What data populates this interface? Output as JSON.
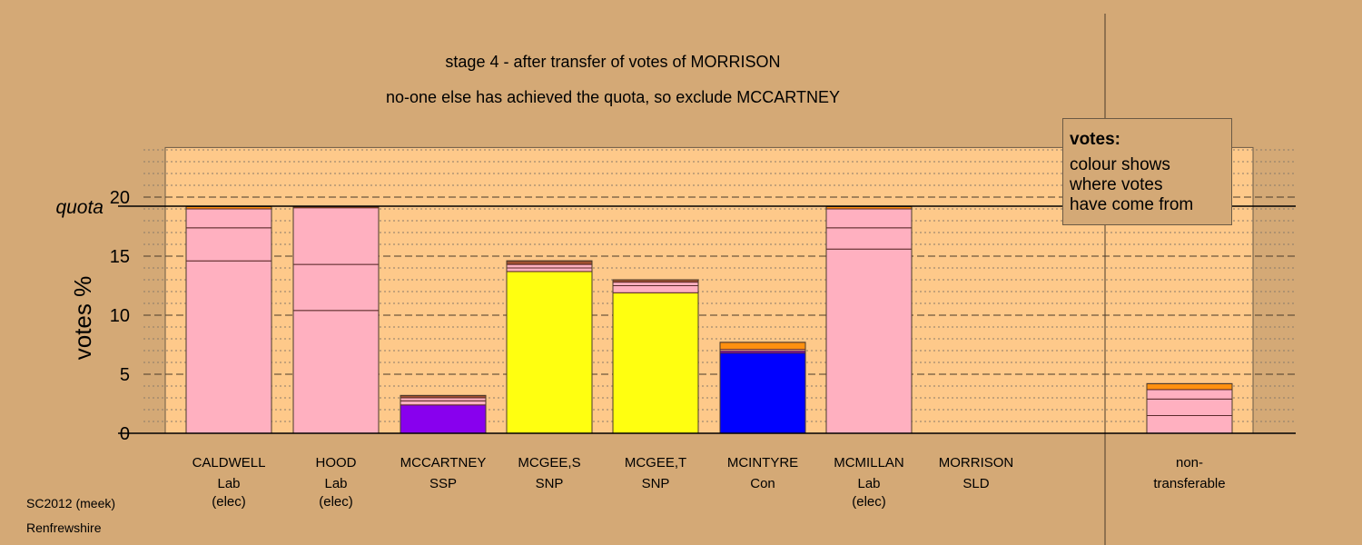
{
  "chart_data": {
    "type": "bar",
    "stacked": true,
    "title": "stage 4 - after transfer of votes of MORRISON",
    "subtitle": "no-one else has achieved the quota, so exclude MCCARTNEY",
    "ylabel": "votes %",
    "ylim": [
      0,
      24.2
    ],
    "yticks": [
      "0",
      "5",
      "10",
      "15",
      "20"
    ],
    "quota": 19.23,
    "quota_label": "quota",
    "grid": true,
    "categories": [
      {
        "name": "CALDWELL",
        "party": "Lab",
        "note": "(elec)",
        "segments": [
          [
            14.6,
            "#ffb0c0"
          ],
          [
            2.8,
            "#ffb0c0"
          ],
          [
            1.6,
            "#ffb0c0"
          ],
          [
            0.2,
            "#ff9010"
          ]
        ]
      },
      {
        "name": "HOOD",
        "party": "Lab",
        "note": "(elec)",
        "segments": [
          [
            10.4,
            "#ffb0c0"
          ],
          [
            3.9,
            "#ffb0c0"
          ],
          [
            4.8,
            "#ffb0c0"
          ],
          [
            0.1,
            "#ff9010"
          ]
        ]
      },
      {
        "name": "MCCARTNEY",
        "party": "SSP",
        "note": "",
        "segments": [
          [
            2.4,
            "#8800ee"
          ],
          [
            0.35,
            "#ffb0c0"
          ],
          [
            0.25,
            "#ffb0c0"
          ],
          [
            0.2,
            "#a05030"
          ]
        ]
      },
      {
        "name": "MCGEE,S",
        "party": "SNP",
        "note": "",
        "segments": [
          [
            13.7,
            "#ffff10"
          ],
          [
            0.3,
            "#ffb0c0"
          ],
          [
            0.3,
            "#ffb0c0"
          ],
          [
            0.3,
            "#a05030"
          ]
        ]
      },
      {
        "name": "MCGEE,T",
        "party": "SNP",
        "note": "",
        "segments": [
          [
            11.9,
            "#ffff10"
          ],
          [
            0.6,
            "#ffb0c0"
          ],
          [
            0.3,
            "#ffb0c0"
          ],
          [
            0.2,
            "#a05030"
          ]
        ]
      },
      {
        "name": "MCINTYRE",
        "party": "Con",
        "note": "",
        "segments": [
          [
            6.8,
            "#0000ff"
          ],
          [
            0.15,
            "#8800ee"
          ],
          [
            0.15,
            "#ffb0c0"
          ],
          [
            0.6,
            "#ff9010"
          ]
        ]
      },
      {
        "name": "MCMILLAN",
        "party": "Lab",
        "note": "(elec)",
        "segments": [
          [
            15.6,
            "#ffb0c0"
          ],
          [
            1.8,
            "#ffb0c0"
          ],
          [
            1.6,
            "#ffb0c0"
          ],
          [
            0.2,
            "#ff9010"
          ]
        ]
      },
      {
        "name": "MORRISON",
        "party": "SLD",
        "note": "",
        "segments": []
      },
      {
        "name": "non-",
        "party": "transferable",
        "note": "",
        "segments": [
          [
            1.5,
            "#ffb0c0"
          ],
          [
            1.4,
            "#ffb0c0"
          ],
          [
            0.8,
            "#ffb0c0"
          ],
          [
            0.5,
            "#ff9010"
          ]
        ]
      }
    ]
  },
  "legend": {
    "heading": "votes:",
    "lines": [
      "colour shows",
      "where votes",
      "have come from"
    ]
  },
  "footer": {
    "line1": "SC2012 (meek)",
    "line2": "Renfrewshire"
  }
}
